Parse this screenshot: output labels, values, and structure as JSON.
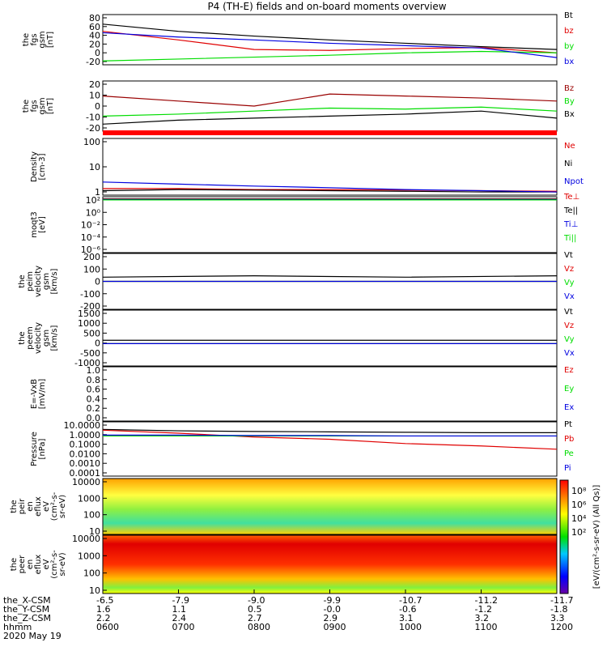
{
  "title": "P4 (TH-E) fields and on-board moments overview",
  "colors": {
    "black": "#000000",
    "red": "#e00000",
    "darkred": "#990000",
    "green": "#00dd00",
    "blue": "#0000e0",
    "bar_red": "#ff0000"
  },
  "chart_data": [
    {
      "id": "fgs_gsm_tot",
      "type": "line",
      "ylabel": [
        "the",
        "fgs",
        "gsm",
        "[nT]"
      ],
      "ylim": [
        -20,
        85
      ],
      "yticks": [
        "80",
        "60",
        "40",
        "20",
        "0",
        "-20"
      ],
      "x": [
        0,
        60,
        120,
        180,
        240,
        300,
        360
      ],
      "series": [
        {
          "name": "Bt",
          "color": "#000000",
          "values": [
            65,
            50,
            40,
            32,
            25,
            18,
            12
          ]
        },
        {
          "name": "bz",
          "color": "#e00000",
          "values": [
            50,
            32,
            12,
            10,
            14,
            16,
            5
          ]
        },
        {
          "name": "by",
          "color": "#00dd00",
          "values": [
            -12,
            -8,
            -4,
            0,
            5,
            8,
            5
          ]
        },
        {
          "name": "bx",
          "color": "#0000e0",
          "values": [
            47,
            38,
            32,
            25,
            20,
            15,
            -5
          ]
        }
      ]
    },
    {
      "id": "fgs_gsm_comp",
      "type": "line",
      "ylabel": [
        "the",
        "fgs",
        "gsm",
        "[nT]"
      ],
      "ylim": [
        -25,
        25
      ],
      "yticks": [
        "20",
        "10",
        "0",
        "-10",
        "-20"
      ],
      "x": [
        0,
        60,
        120,
        180,
        240,
        300,
        360
      ],
      "series": [
        {
          "name": "Bz",
          "color": "#990000",
          "values": [
            10,
            5,
            0,
            12,
            10,
            8,
            5
          ]
        },
        {
          "name": "By",
          "color": "#00dd00",
          "values": [
            -10,
            -8,
            -5,
            -2,
            -3,
            -1,
            -5
          ]
        },
        {
          "name": "Bx",
          "color": "#000000",
          "values": [
            -18,
            -14,
            -12,
            -10,
            -8,
            -5,
            -12
          ]
        }
      ]
    },
    {
      "id": "density",
      "type": "line",
      "log": true,
      "ylabel": [
        "Density",
        "[cm-3]"
      ],
      "ylim": [
        0.5,
        200
      ],
      "yticks": [
        "100",
        "10",
        "1"
      ],
      "x": [
        0,
        60,
        120,
        180,
        240,
        300,
        360
      ],
      "series": [
        {
          "name": "Ne",
          "color": "#e00000",
          "values": [
            1.0,
            1.0,
            0.9,
            0.9,
            0.85,
            0.8,
            0.75
          ]
        },
        {
          "name": "Ni",
          "color": "#000000",
          "values": [
            0.8,
            0.9,
            0.85,
            0.8,
            0.75,
            0.7,
            0.7
          ]
        },
        {
          "name": "Npot",
          "color": "#0000e0",
          "values": [
            2.0,
            1.6,
            1.3,
            1.1,
            0.9,
            0.8,
            0.7
          ]
        }
      ]
    },
    {
      "id": "temperature",
      "type": "line",
      "log": true,
      "ylabel": [
        "moqt3",
        "[eV]"
      ],
      "ylim": [
        1e-06,
        100
      ],
      "yticks": [
        "10²",
        "10⁰",
        "10⁻²",
        "10⁻⁴",
        "10⁻⁶"
      ],
      "x": [
        0,
        360
      ],
      "series": [
        {
          "name": "Te⊥",
          "color": "#e00000",
          "values": [
            50,
            50
          ]
        },
        {
          "name": "Te||",
          "color": "#000000",
          "values": [
            45,
            45
          ]
        },
        {
          "name": "Ti⊥",
          "color": "#0000e0",
          "values": [
            40,
            40
          ]
        },
        {
          "name": "Ti||",
          "color": "#00dd00",
          "values": [
            35,
            35
          ]
        }
      ]
    },
    {
      "id": "peim_velocity",
      "type": "line",
      "ylabel": [
        "the",
        "peim",
        "velocity",
        "gsm",
        "[km/s]"
      ],
      "ylim": [
        -200,
        200
      ],
      "yticks": [
        "200",
        "100",
        "0",
        "-100",
        "-200"
      ],
      "x": [
        0,
        120,
        240,
        360
      ],
      "series": [
        {
          "name": "Vt",
          "color": "#000000",
          "values": [
            30,
            40,
            30,
            40
          ]
        },
        {
          "name": "Vz",
          "color": "#e00000",
          "values": [
            0,
            0,
            0,
            0
          ]
        },
        {
          "name": "Vy",
          "color": "#00dd00",
          "values": [
            0,
            0,
            0,
            0
          ]
        },
        {
          "name": "Vx",
          "color": "#0000e0",
          "values": [
            0,
            0,
            0,
            0
          ]
        }
      ]
    },
    {
      "id": "peem_velocity",
      "type": "line",
      "ylabel": [
        "the",
        "peem",
        "velocity",
        "gsm",
        "[km/s]"
      ],
      "ylim": [
        -1000,
        1500
      ],
      "yticks": [
        "1500",
        "1000",
        "500",
        "0",
        "-500",
        "-1000"
      ],
      "x": [
        0,
        120,
        240,
        360
      ],
      "series": [
        {
          "name": "Vt",
          "color": "#000000",
          "values": [
            150,
            150,
            150,
            150
          ]
        },
        {
          "name": "Vz",
          "color": "#e00000",
          "values": [
            0,
            0,
            0,
            0
          ]
        },
        {
          "name": "Vy",
          "color": "#00dd00",
          "values": [
            0,
            0,
            0,
            0
          ]
        },
        {
          "name": "Vx",
          "color": "#0000e0",
          "values": [
            0,
            0,
            0,
            0
          ]
        }
      ]
    },
    {
      "id": "efield",
      "type": "line",
      "ylabel": [
        "E=-VxB",
        "[mV/m]"
      ],
      "ylim": [
        0,
        1
      ],
      "yticks": [
        "1.0",
        "0.8",
        "0.6",
        "0.4",
        "0.2",
        "0.0"
      ],
      "x": [],
      "series": [
        {
          "name": "Ez",
          "color": "#e00000",
          "values": []
        },
        {
          "name": "Ey",
          "color": "#00dd00",
          "values": []
        },
        {
          "name": "Ex",
          "color": "#0000e0",
          "values": []
        }
      ]
    },
    {
      "id": "pressure",
      "type": "line",
      "log": true,
      "ylabel": [
        "Pressure",
        "[nPa]"
      ],
      "ylim": [
        0.0001,
        10
      ],
      "yticks": [
        "10.0000",
        "1.0000",
        "0.1000",
        "0.0100",
        "0.0010",
        "0.0001"
      ],
      "x": [
        0,
        60,
        120,
        180,
        240,
        300,
        360
      ],
      "series": [
        {
          "name": "Pt",
          "color": "#000000",
          "values": [
            2.0,
            1.5,
            1.3,
            1.2,
            1.1,
            1.0,
            1.0
          ]
        },
        {
          "name": "Pb",
          "color": "#e00000",
          "values": [
            1.7,
            0.9,
            0.4,
            0.25,
            0.1,
            0.06,
            0.03
          ]
        },
        {
          "name": "Pe",
          "color": "#00dd00",
          "values": [
            0.5,
            0.5,
            0.5,
            0.5,
            0.5,
            0.5,
            0.5
          ]
        },
        {
          "name": "Pi",
          "color": "#0000e0",
          "values": [
            0.6,
            0.6,
            0.55,
            0.55,
            0.5,
            0.5,
            0.5
          ]
        }
      ]
    },
    {
      "id": "peir_eflux",
      "type": "heatmap",
      "ylabel": [
        "the",
        "peir",
        "en",
        "eflux",
        "eV",
        "(cm²-s-",
        "sr-eV)"
      ],
      "yticks": [
        "10000",
        "1000",
        "100",
        "10"
      ],
      "colorbar_ticks": [
        "10⁸",
        "10⁶",
        "10⁴",
        "10²"
      ]
    },
    {
      "id": "peer_eflux",
      "type": "heatmap",
      "ylabel": [
        "the",
        "peer",
        "en",
        "eflux",
        "eV",
        "(cm²-s-",
        "sr-eV)"
      ],
      "yticks": [
        "10000",
        "1000",
        "100",
        "10"
      ],
      "colorbar_ticks": [
        "10⁸",
        "10⁶",
        "10⁴",
        "10²"
      ]
    }
  ],
  "colorbar_label": "[eV/(cm²-s-sr-eV) (All Qs)]",
  "xaxis": {
    "row_labels": [
      "the_X-CSM",
      "the_Y-CSM",
      "the_Z-CSM",
      "hhmm"
    ],
    "date_label": "2020 May 19",
    "columns": [
      {
        "x_csm": "-6.5",
        "y_csm": "1.6",
        "z_csm": "2.2",
        "hhmm": "0600"
      },
      {
        "x_csm": "-7.9",
        "y_csm": "1.1",
        "z_csm": "2.4",
        "hhmm": "0700"
      },
      {
        "x_csm": "-9.0",
        "y_csm": "0.5",
        "z_csm": "2.7",
        "hhmm": "0800"
      },
      {
        "x_csm": "-9.9",
        "y_csm": "-0.0",
        "z_csm": "2.9",
        "hhmm": "0900"
      },
      {
        "x_csm": "-10.7",
        "y_csm": "-0.6",
        "z_csm": "3.1",
        "hhmm": "1000"
      },
      {
        "x_csm": "-11.2",
        "y_csm": "-1.2",
        "z_csm": "3.2",
        "hhmm": "1100"
      },
      {
        "x_csm": "-11.7",
        "y_csm": "-1.8",
        "z_csm": "3.3",
        "hhmm": "1200"
      }
    ]
  }
}
